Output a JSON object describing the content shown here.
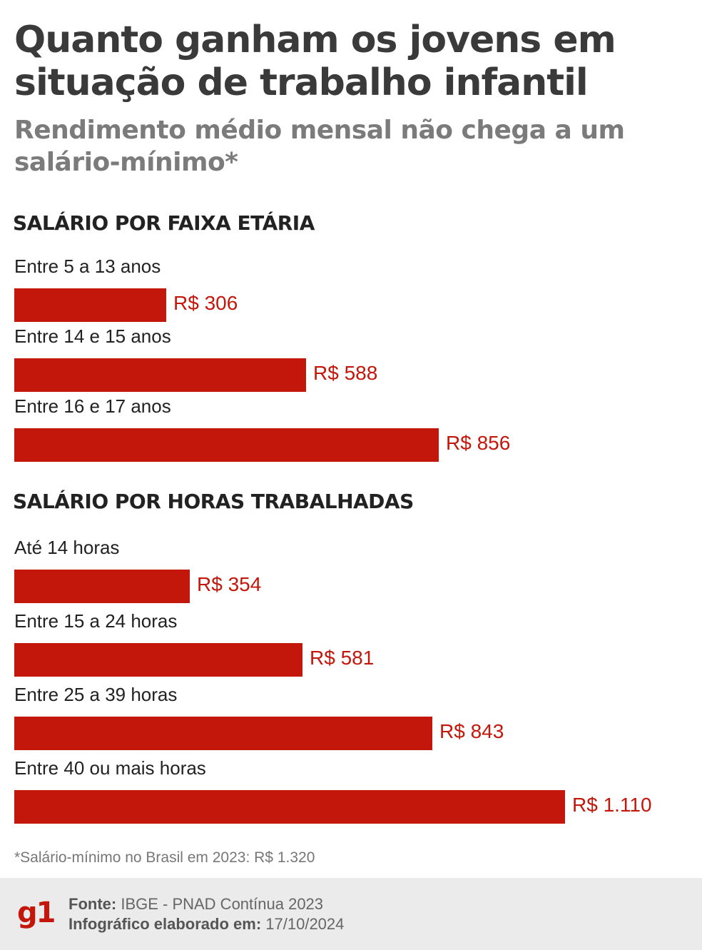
{
  "header": {
    "title": "Quanto ganham os jovens em situação de trabalho infantil",
    "subtitle": "Rendimento médio mensal não chega a um salário-mínimo*"
  },
  "colors": {
    "bar": "#c4170c",
    "footer_bg": "#ebebeb"
  },
  "chart_data": [
    {
      "type": "bar",
      "orientation": "horizontal",
      "title": "SALÁRIO POR FAIXA ETÁRIA",
      "categories": [
        "Entre 5 a 13 anos",
        "Entre 14 e 15 anos",
        "Entre 16 e 17 anos"
      ],
      "values": [
        306,
        588,
        856
      ],
      "value_labels": [
        "R$ 306",
        "R$ 588",
        "R$ 856"
      ],
      "xlim": [
        0,
        1110
      ]
    },
    {
      "type": "bar",
      "orientation": "horizontal",
      "title": "SALÁRIO POR HORAS TRABALHADAS",
      "categories": [
        "Até 14 horas",
        "Entre 15 a 24 horas",
        "Entre 25 a 39 horas",
        "Entre 40 ou mais horas"
      ],
      "values": [
        354,
        581,
        843,
        1110
      ],
      "value_labels": [
        "R$ 354",
        "R$ 581",
        "R$ 843",
        "R$ 1.110"
      ],
      "xlim": [
        0,
        1110
      ]
    }
  ],
  "note": "*Salário-mínimo no Brasil em 2023: R$ 1.320",
  "footer": {
    "logo": "g1",
    "source_label": "Fonte:",
    "source_value": "IBGE - PNAD Contínua 2023",
    "date_label": "Infográfico elaborado em:",
    "date_value": "17/10/2024"
  }
}
